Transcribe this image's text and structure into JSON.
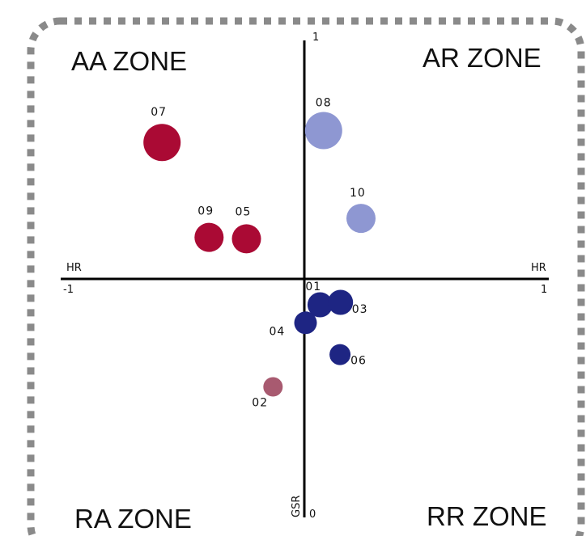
{
  "chart_data": {
    "type": "scatter",
    "zones": {
      "top_left": "AA ZONE",
      "top_right": "AR ZONE",
      "bottom_left": "RA ZONE",
      "bottom_right": "RR ZONE"
    },
    "x_axis": {
      "label_left": "HR",
      "label_right": "HR",
      "min_label": "-1",
      "max_label": "1"
    },
    "y_axis": {
      "label": "GSR",
      "max_label": "1",
      "min_label": "0"
    },
    "xlim": [
      -1,
      1
    ],
    "ylim": [
      0,
      1
    ],
    "grid": false,
    "colors": {
      "red": "#aa0a34",
      "lavender": "#8e97d2",
      "navy": "#1e2583",
      "mauve": "#a85a70",
      "border": "#8a8a8a"
    },
    "points": [
      {
        "label": "07",
        "x": -0.59,
        "y": 0.785,
        "size": 3,
        "color": "red"
      },
      {
        "label": "09",
        "x": -0.395,
        "y": 0.585,
        "size": 2,
        "color": "red"
      },
      {
        "label": "05",
        "x": -0.24,
        "y": 0.582,
        "size": 2,
        "color": "red"
      },
      {
        "label": "08",
        "x": 0.08,
        "y": 0.81,
        "size": 3,
        "color": "lavender"
      },
      {
        "label": "10",
        "x": 0.235,
        "y": 0.625,
        "size": 2,
        "color": "lavender"
      },
      {
        "label": "01",
        "x": 0.065,
        "y": 0.443,
        "size": 1.5,
        "color": "navy"
      },
      {
        "label": "03",
        "x": 0.15,
        "y": 0.448,
        "size": 1.5,
        "color": "navy"
      },
      {
        "label": "04",
        "x": 0.005,
        "y": 0.405,
        "size": 1.2,
        "color": "navy"
      },
      {
        "label": "06",
        "x": 0.148,
        "y": 0.338,
        "size": 1,
        "color": "navy"
      },
      {
        "label": "02",
        "x": -0.13,
        "y": 0.27,
        "size": 0.8,
        "color": "mauve"
      }
    ]
  }
}
